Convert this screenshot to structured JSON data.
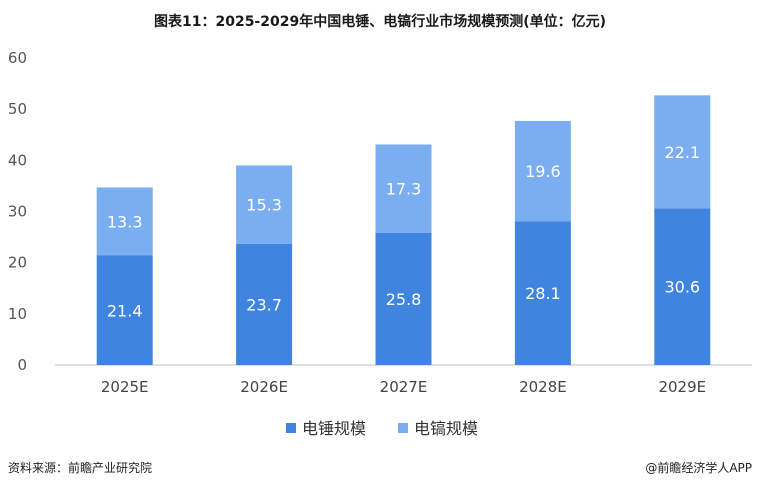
{
  "chart_data": {
    "type": "bar",
    "stacked": true,
    "title": "图表11：2025-2029年中国电锤、电镐行业市场规模预测(单位：亿元)",
    "categories": [
      "2025E",
      "2026E",
      "2027E",
      "2028E",
      "2029E"
    ],
    "series": [
      {
        "name": "电锤规模",
        "values": [
          21.4,
          23.7,
          25.8,
          28.1,
          30.6
        ],
        "color": "#3f85e0"
      },
      {
        "name": "电镐规模",
        "values": [
          13.3,
          15.3,
          17.3,
          19.6,
          22.1
        ],
        "color": "#7aaef0"
      }
    ],
    "ylim": [
      0,
      60
    ],
    "yticks": [
      0,
      10,
      20,
      30,
      40,
      50,
      60
    ],
    "xlabel": "",
    "ylabel": "",
    "legend": "bottom-center",
    "grid": false
  },
  "footer": {
    "source": "资料来源：前瞻产业研究院",
    "brand": "@前瞻经济学人APP"
  }
}
